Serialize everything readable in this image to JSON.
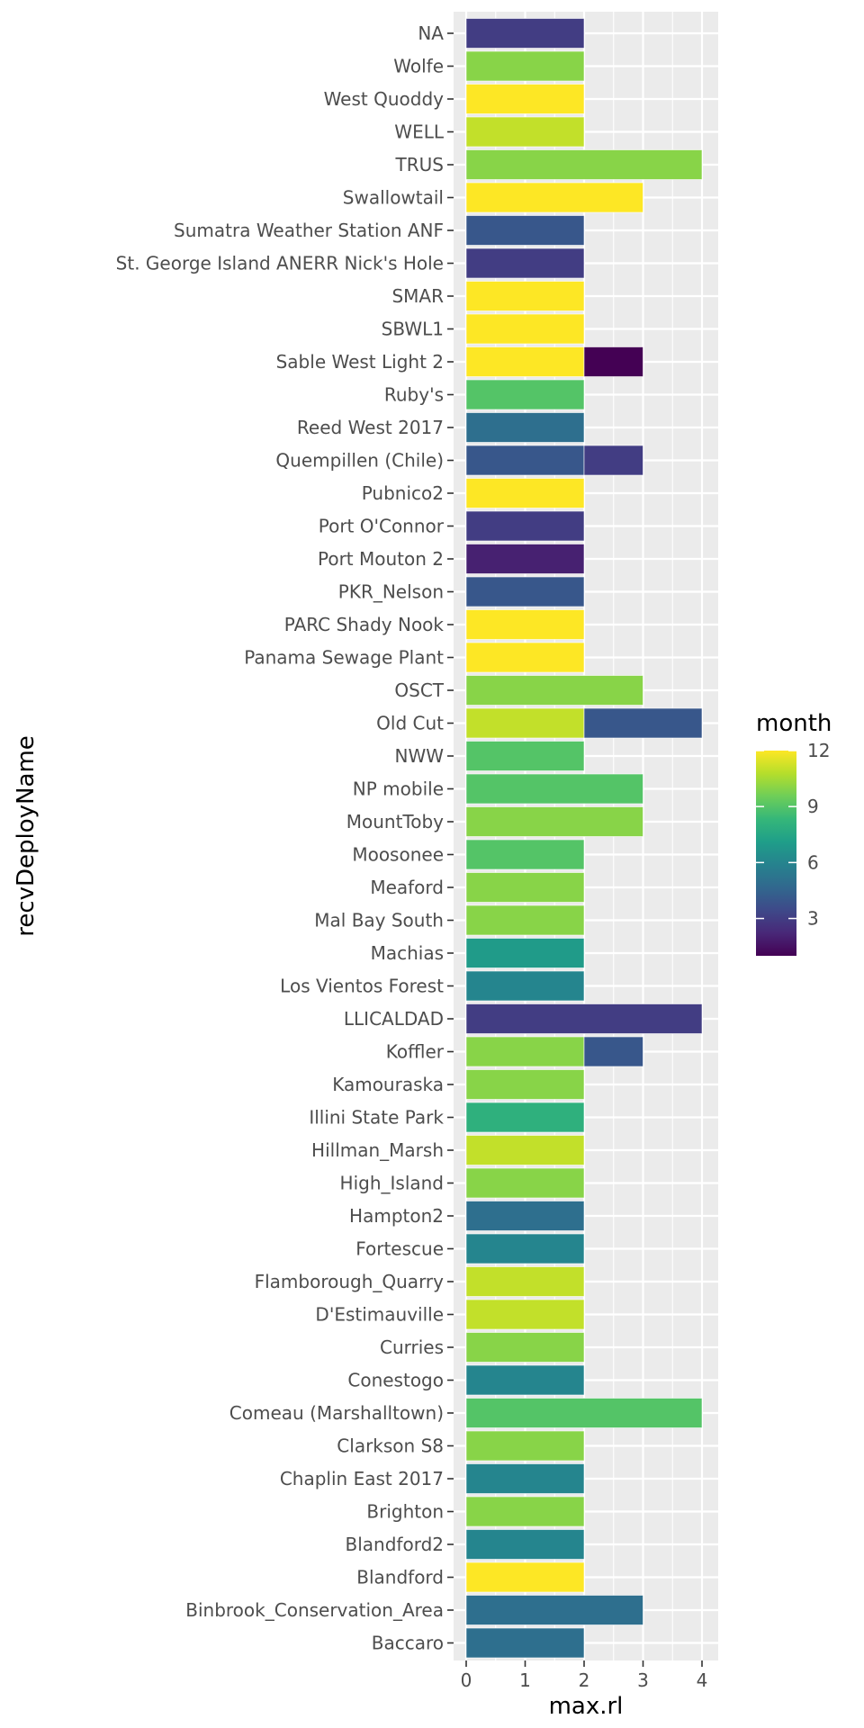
{
  "chart_data": {
    "type": "bar",
    "orientation": "horizontal",
    "stacked": true,
    "xlabel": "max.rl",
    "ylabel": "recvDeployName",
    "xlim": [
      0,
      4
    ],
    "xticks": [
      "0",
      "1",
      "2",
      "3",
      "4"
    ],
    "grid": true,
    "legend": {
      "title": "month",
      "placement": "right",
      "type": "continuous",
      "range": [
        1,
        12
      ],
      "ticks": [
        "3",
        "6",
        "9",
        "12"
      ],
      "palette": [
        "#440154",
        "#482878",
        "#3e4989",
        "#31688e",
        "#26828e",
        "#1f9e89",
        "#35b779",
        "#6ece58",
        "#b5de2b",
        "#fde725"
      ]
    },
    "categories": [
      "NA",
      "Wolfe",
      "West Quoddy",
      "WELL",
      "TRUS",
      "Swallowtail",
      "Sumatra Weather Station ANF",
      "St. George Island ANERR Nick's Hole",
      "SMAR",
      "SBWL1",
      "Sable West Light 2",
      "Ruby's",
      "Reed West 2017",
      "Quempillen (Chile)",
      "Pubnico2",
      "Port O'Connor",
      "Port Mouton 2",
      "PKR_Nelson",
      "PARC Shady Nook",
      "Panama Sewage Plant",
      "OSCT",
      "Old Cut",
      "NWW",
      "NP mobile",
      "MountToby",
      "Moosonee",
      "Meaford",
      "Mal Bay South ",
      "Machias",
      "Los Vientos Forest",
      "LLICALDAD",
      "Koffler",
      "Kamouraska",
      "Illini State Park ",
      "Hillman_Marsh",
      "High_Island",
      "Hampton2",
      "Fortescue",
      "Flamborough_Quarry",
      "D'Estimauville",
      "Curries",
      "Conestogo",
      "Comeau (Marshalltown)",
      "Clarkson S8",
      "Chaplin East 2017",
      "Brighton",
      "Blandford2",
      "Blandford",
      "Binbrook_Conservation_Area",
      "Baccaro"
    ],
    "segments": [
      [
        {
          "value": 2,
          "month": 3
        }
      ],
      [
        {
          "value": 2,
          "month": 10
        }
      ],
      [
        {
          "value": 2,
          "month": 12
        }
      ],
      [
        {
          "value": 2,
          "month": 11
        }
      ],
      [
        {
          "value": 4,
          "month": 10
        }
      ],
      [
        {
          "value": 3,
          "month": 12
        }
      ],
      [
        {
          "value": 2,
          "month": 4
        }
      ],
      [
        {
          "value": 2,
          "month": 3
        }
      ],
      [
        {
          "value": 2,
          "month": 12
        }
      ],
      [
        {
          "value": 2,
          "month": 12
        }
      ],
      [
        {
          "value": 2,
          "month": 12
        },
        {
          "value": 1,
          "month": 1
        }
      ],
      [
        {
          "value": 2,
          "month": 9
        }
      ],
      [
        {
          "value": 2,
          "month": 5
        }
      ],
      [
        {
          "value": 2,
          "month": 4
        },
        {
          "value": 1,
          "month": 3
        }
      ],
      [
        {
          "value": 2,
          "month": 12
        }
      ],
      [
        {
          "value": 2,
          "month": 3
        }
      ],
      [
        {
          "value": 2,
          "month": 2
        }
      ],
      [
        {
          "value": 2,
          "month": 4
        }
      ],
      [
        {
          "value": 2,
          "month": 12
        }
      ],
      [
        {
          "value": 2,
          "month": 12
        }
      ],
      [
        {
          "value": 3,
          "month": 10
        }
      ],
      [
        {
          "value": 2,
          "month": 11
        },
        {
          "value": 2,
          "month": 4
        }
      ],
      [
        {
          "value": 2,
          "month": 9
        }
      ],
      [
        {
          "value": 3,
          "month": 9
        }
      ],
      [
        {
          "value": 3,
          "month": 10
        }
      ],
      [
        {
          "value": 2,
          "month": 9
        }
      ],
      [
        {
          "value": 2,
          "month": 10
        }
      ],
      [
        {
          "value": 2,
          "month": 10
        }
      ],
      [
        {
          "value": 2,
          "month": 7
        }
      ],
      [
        {
          "value": 2,
          "month": 6
        }
      ],
      [
        {
          "value": 4,
          "month": 3
        }
      ],
      [
        {
          "value": 2,
          "month": 10
        },
        {
          "value": 1,
          "month": 4
        }
      ],
      [
        {
          "value": 2,
          "month": 10
        }
      ],
      [
        {
          "value": 2,
          "month": 8
        }
      ],
      [
        {
          "value": 2,
          "month": 11
        }
      ],
      [
        {
          "value": 2,
          "month": 10
        }
      ],
      [
        {
          "value": 2,
          "month": 5
        }
      ],
      [
        {
          "value": 2,
          "month": 6
        }
      ],
      [
        {
          "value": 2,
          "month": 11
        }
      ],
      [
        {
          "value": 2,
          "month": 11
        }
      ],
      [
        {
          "value": 2,
          "month": 10
        }
      ],
      [
        {
          "value": 2,
          "month": 6
        }
      ],
      [
        {
          "value": 4,
          "month": 9
        }
      ],
      [
        {
          "value": 2,
          "month": 10
        }
      ],
      [
        {
          "value": 2,
          "month": 6
        }
      ],
      [
        {
          "value": 2,
          "month": 10
        }
      ],
      [
        {
          "value": 2,
          "month": 6
        }
      ],
      [
        {
          "value": 2,
          "month": 12
        }
      ],
      [
        {
          "value": 3,
          "month": 5
        }
      ],
      [
        {
          "value": 2,
          "month": 5
        }
      ]
    ]
  }
}
